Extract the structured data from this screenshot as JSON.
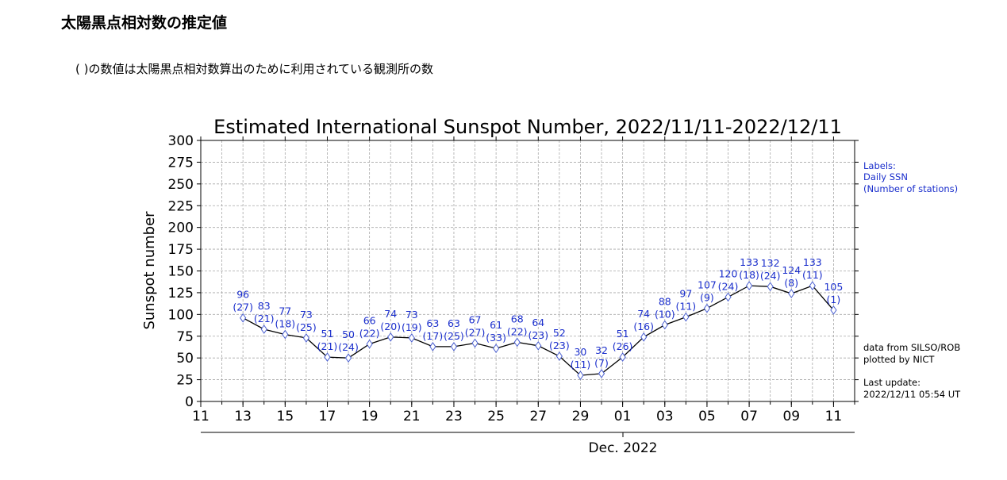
{
  "page": {
    "heading": "太陽黒点相対数の推定値",
    "note": "( )の数値は太陽黒点相対数算出のために利用されている観測所の数"
  },
  "chart_data": {
    "type": "line",
    "title": "Estimated International Sunspot Number, 2022/11/11-2022/12/11",
    "ylabel": "Sunspot number",
    "xlabel": "Dec. 2022",
    "ylim": [
      0,
      300
    ],
    "y_ticks": [
      0,
      25,
      50,
      75,
      100,
      125,
      150,
      175,
      200,
      225,
      250,
      275,
      300
    ],
    "x_tick_labels": [
      "11",
      "13",
      "15",
      "17",
      "19",
      "21",
      "23",
      "25",
      "27",
      "29",
      "01",
      "03",
      "05",
      "07",
      "09",
      "11"
    ],
    "grid": true,
    "colors": {
      "line": "#000000",
      "marker": "#4a5fd0",
      "labels": "#1a2ecc"
    },
    "legend": {
      "lines": [
        "Labels:",
        "Daily SSN",
        "(Number of stations)"
      ],
      "placement": "top-right"
    },
    "source_lines": [
      "data from SILSO/ROB",
      "plotted by NICT"
    ],
    "update_lines": [
      "Last update:",
      "2022/12/11 05:54 UT"
    ],
    "points": [
      {
        "date": "2022-11-13",
        "ssn": 96,
        "stations": "(27)"
      },
      {
        "date": "2022-11-14",
        "ssn": 83,
        "stations": "(21)"
      },
      {
        "date": "2022-11-15",
        "ssn": 77,
        "stations": "(18)"
      },
      {
        "date": "2022-11-16",
        "ssn": 73,
        "stations": "(25)"
      },
      {
        "date": "2022-11-17",
        "ssn": 51,
        "stations": "(21)"
      },
      {
        "date": "2022-11-18",
        "ssn": 50,
        "stations": "(24)"
      },
      {
        "date": "2022-11-19",
        "ssn": 66,
        "stations": "(22)"
      },
      {
        "date": "2022-11-20",
        "ssn": 74,
        "stations": "(20)"
      },
      {
        "date": "2022-11-21",
        "ssn": 73,
        "stations": "(19)"
      },
      {
        "date": "2022-11-22",
        "ssn": 63,
        "stations": "(17)"
      },
      {
        "date": "2022-11-23",
        "ssn": 63,
        "stations": "(25)"
      },
      {
        "date": "2022-11-24",
        "ssn": 67,
        "stations": "(27)"
      },
      {
        "date": "2022-11-25",
        "ssn": 61,
        "stations": "(33)"
      },
      {
        "date": "2022-11-26",
        "ssn": 68,
        "stations": "(22)"
      },
      {
        "date": "2022-11-27",
        "ssn": 64,
        "stations": "(23)"
      },
      {
        "date": "2022-11-28",
        "ssn": 52,
        "stations": "(23)"
      },
      {
        "date": "2022-11-29",
        "ssn": 30,
        "stations": "(11)"
      },
      {
        "date": "2022-11-30",
        "ssn": 32,
        "stations": "(7)"
      },
      {
        "date": "2022-12-01",
        "ssn": 51,
        "stations": "(26)"
      },
      {
        "date": "2022-12-02",
        "ssn": 74,
        "stations": "(16)"
      },
      {
        "date": "2022-12-03",
        "ssn": 88,
        "stations": "(10)"
      },
      {
        "date": "2022-12-04",
        "ssn": 97,
        "stations": "(11)"
      },
      {
        "date": "2022-12-05",
        "ssn": 107,
        "stations": "(9)"
      },
      {
        "date": "2022-12-06",
        "ssn": 120,
        "stations": "(24)"
      },
      {
        "date": "2022-12-07",
        "ssn": 133,
        "stations": "(18)"
      },
      {
        "date": "2022-12-08",
        "ssn": 132,
        "stations": "(24)"
      },
      {
        "date": "2022-12-09",
        "ssn": 124,
        "stations": "(8)"
      },
      {
        "date": "2022-12-10",
        "ssn": 133,
        "stations": "(11)"
      },
      {
        "date": "2022-12-11",
        "ssn": 105,
        "stations": "(1)"
      }
    ]
  }
}
